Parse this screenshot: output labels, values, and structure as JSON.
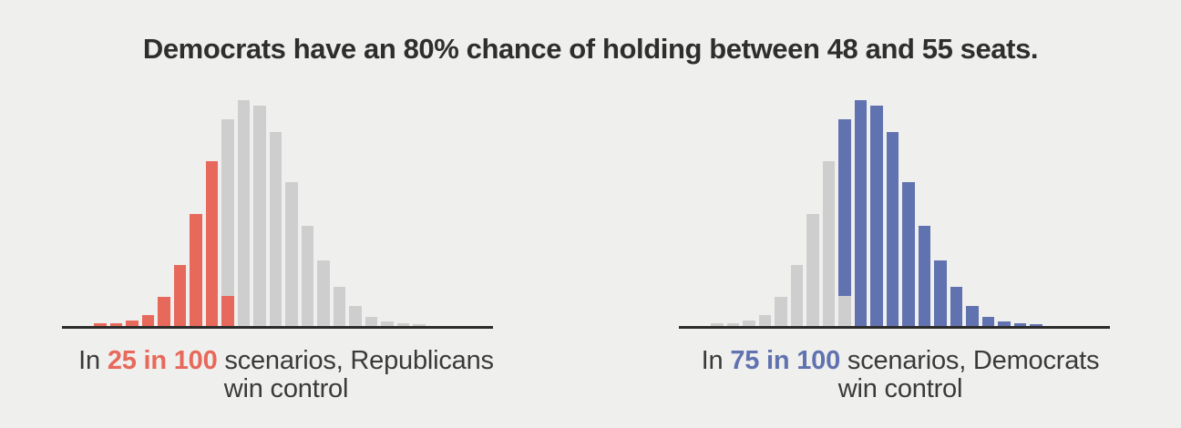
{
  "title": "Democrats have an 80% chance of holding between 48 and 55 seats.",
  "colors": {
    "background": "#efefed",
    "axis": "#2b2b2b",
    "title_text": "#2e2e2e",
    "caption_text": "#3a3a3a",
    "red": "#e7695b",
    "blue": "#6172b0",
    "gray": "#cecece"
  },
  "charts": [
    {
      "name": "republicans-histogram",
      "caption": {
        "prefix": "In ",
        "highlight": "25 in 100",
        "rest": " scenarios, Republicans",
        "line2": "win control",
        "highlight_color": "red"
      },
      "bars": [
        {
          "segments": [
            [
              "red",
              3
            ]
          ]
        },
        {
          "segments": [
            [
              "red",
              3
            ]
          ]
        },
        {
          "segments": [
            [
              "red",
              6
            ]
          ]
        },
        {
          "segments": [
            [
              "red",
              12
            ]
          ]
        },
        {
          "segments": [
            [
              "red",
              32
            ]
          ]
        },
        {
          "segments": [
            [
              "red",
              67
            ]
          ]
        },
        {
          "segments": [
            [
              "red",
              123
            ]
          ]
        },
        {
          "segments": [
            [
              "red",
              181
            ]
          ]
        },
        {
          "segments": [
            [
              "gray",
              194
            ],
            [
              "red",
              33
            ]
          ]
        },
        {
          "segments": [
            [
              "gray",
              248
            ]
          ]
        },
        {
          "segments": [
            [
              "gray",
              242
            ]
          ]
        },
        {
          "segments": [
            [
              "gray",
              213
            ]
          ]
        },
        {
          "segments": [
            [
              "gray",
              158
            ]
          ]
        },
        {
          "segments": [
            [
              "gray",
              110
            ]
          ]
        },
        {
          "segments": [
            [
              "gray",
              72
            ]
          ]
        },
        {
          "segments": [
            [
              "gray",
              43
            ]
          ]
        },
        {
          "segments": [
            [
              "gray",
              22
            ]
          ]
        },
        {
          "segments": [
            [
              "gray",
              10
            ]
          ]
        },
        {
          "segments": [
            [
              "gray",
              5
            ]
          ]
        },
        {
          "segments": [
            [
              "gray",
              3
            ]
          ]
        },
        {
          "segments": [
            [
              "gray",
              2
            ]
          ]
        }
      ]
    },
    {
      "name": "democrats-histogram",
      "caption": {
        "prefix": "In ",
        "highlight": "75 in 100",
        "rest": " scenarios, Democrats",
        "line2": "win control",
        "highlight_color": "blue"
      },
      "bars": [
        {
          "segments": [
            [
              "gray",
              3
            ]
          ]
        },
        {
          "segments": [
            [
              "gray",
              3
            ]
          ]
        },
        {
          "segments": [
            [
              "gray",
              6
            ]
          ]
        },
        {
          "segments": [
            [
              "gray",
              12
            ]
          ]
        },
        {
          "segments": [
            [
              "gray",
              32
            ]
          ]
        },
        {
          "segments": [
            [
              "gray",
              67
            ]
          ]
        },
        {
          "segments": [
            [
              "gray",
              123
            ]
          ]
        },
        {
          "segments": [
            [
              "gray",
              181
            ]
          ]
        },
        {
          "segments": [
            [
              "blue",
              194
            ],
            [
              "gray",
              33
            ]
          ]
        },
        {
          "segments": [
            [
              "blue",
              248
            ]
          ]
        },
        {
          "segments": [
            [
              "blue",
              242
            ]
          ]
        },
        {
          "segments": [
            [
              "blue",
              213
            ]
          ]
        },
        {
          "segments": [
            [
              "blue",
              158
            ]
          ]
        },
        {
          "segments": [
            [
              "blue",
              110
            ]
          ]
        },
        {
          "segments": [
            [
              "blue",
              72
            ]
          ]
        },
        {
          "segments": [
            [
              "blue",
              43
            ]
          ]
        },
        {
          "segments": [
            [
              "blue",
              22
            ]
          ]
        },
        {
          "segments": [
            [
              "blue",
              10
            ]
          ]
        },
        {
          "segments": [
            [
              "blue",
              5
            ]
          ]
        },
        {
          "segments": [
            [
              "blue",
              3
            ]
          ]
        },
        {
          "segments": [
            [
              "blue",
              2
            ]
          ]
        }
      ]
    }
  ],
  "chart_data": {
    "type": "bar",
    "subtype": "paired-histograms",
    "title": "Democrats have an 80% chance of holding between 48 and 55 seats.",
    "bins": 21,
    "x_axis": {
      "tick_labels_visible": false
    },
    "y_axis": {
      "tick_labels_visible": false,
      "units": "share of scenarios (%)"
    },
    "grid": false,
    "legend": false,
    "distribution_values_pct": [
      0.17,
      0.17,
      0.34,
      0.67,
      1.8,
      3.76,
      6.9,
      10.16,
      12.74,
      13.92,
      13.58,
      11.95,
      8.87,
      6.17,
      4.04,
      2.41,
      1.23,
      0.56,
      0.28,
      0.17,
      0.11
    ],
    "charts": [
      {
        "caption": "In 25 in 100 scenarios, Republicans win control",
        "highlight_value": "25 in 100",
        "highlight_color": "#e7695b",
        "highlighted_region": "bars 1-8 fully red; bar 9 has red bottom sliver (~1.85%), remaining bars gray"
      },
      {
        "caption": "In 75 in 100 scenarios, Democrats win control",
        "highlight_value": "75 in 100",
        "highlight_color": "#6172b0",
        "highlighted_region": "bars 10-21 fully blue; bar 9 has blue top portion, gray bottom sliver (~1.85%); bars 1-8 gray"
      }
    ]
  }
}
